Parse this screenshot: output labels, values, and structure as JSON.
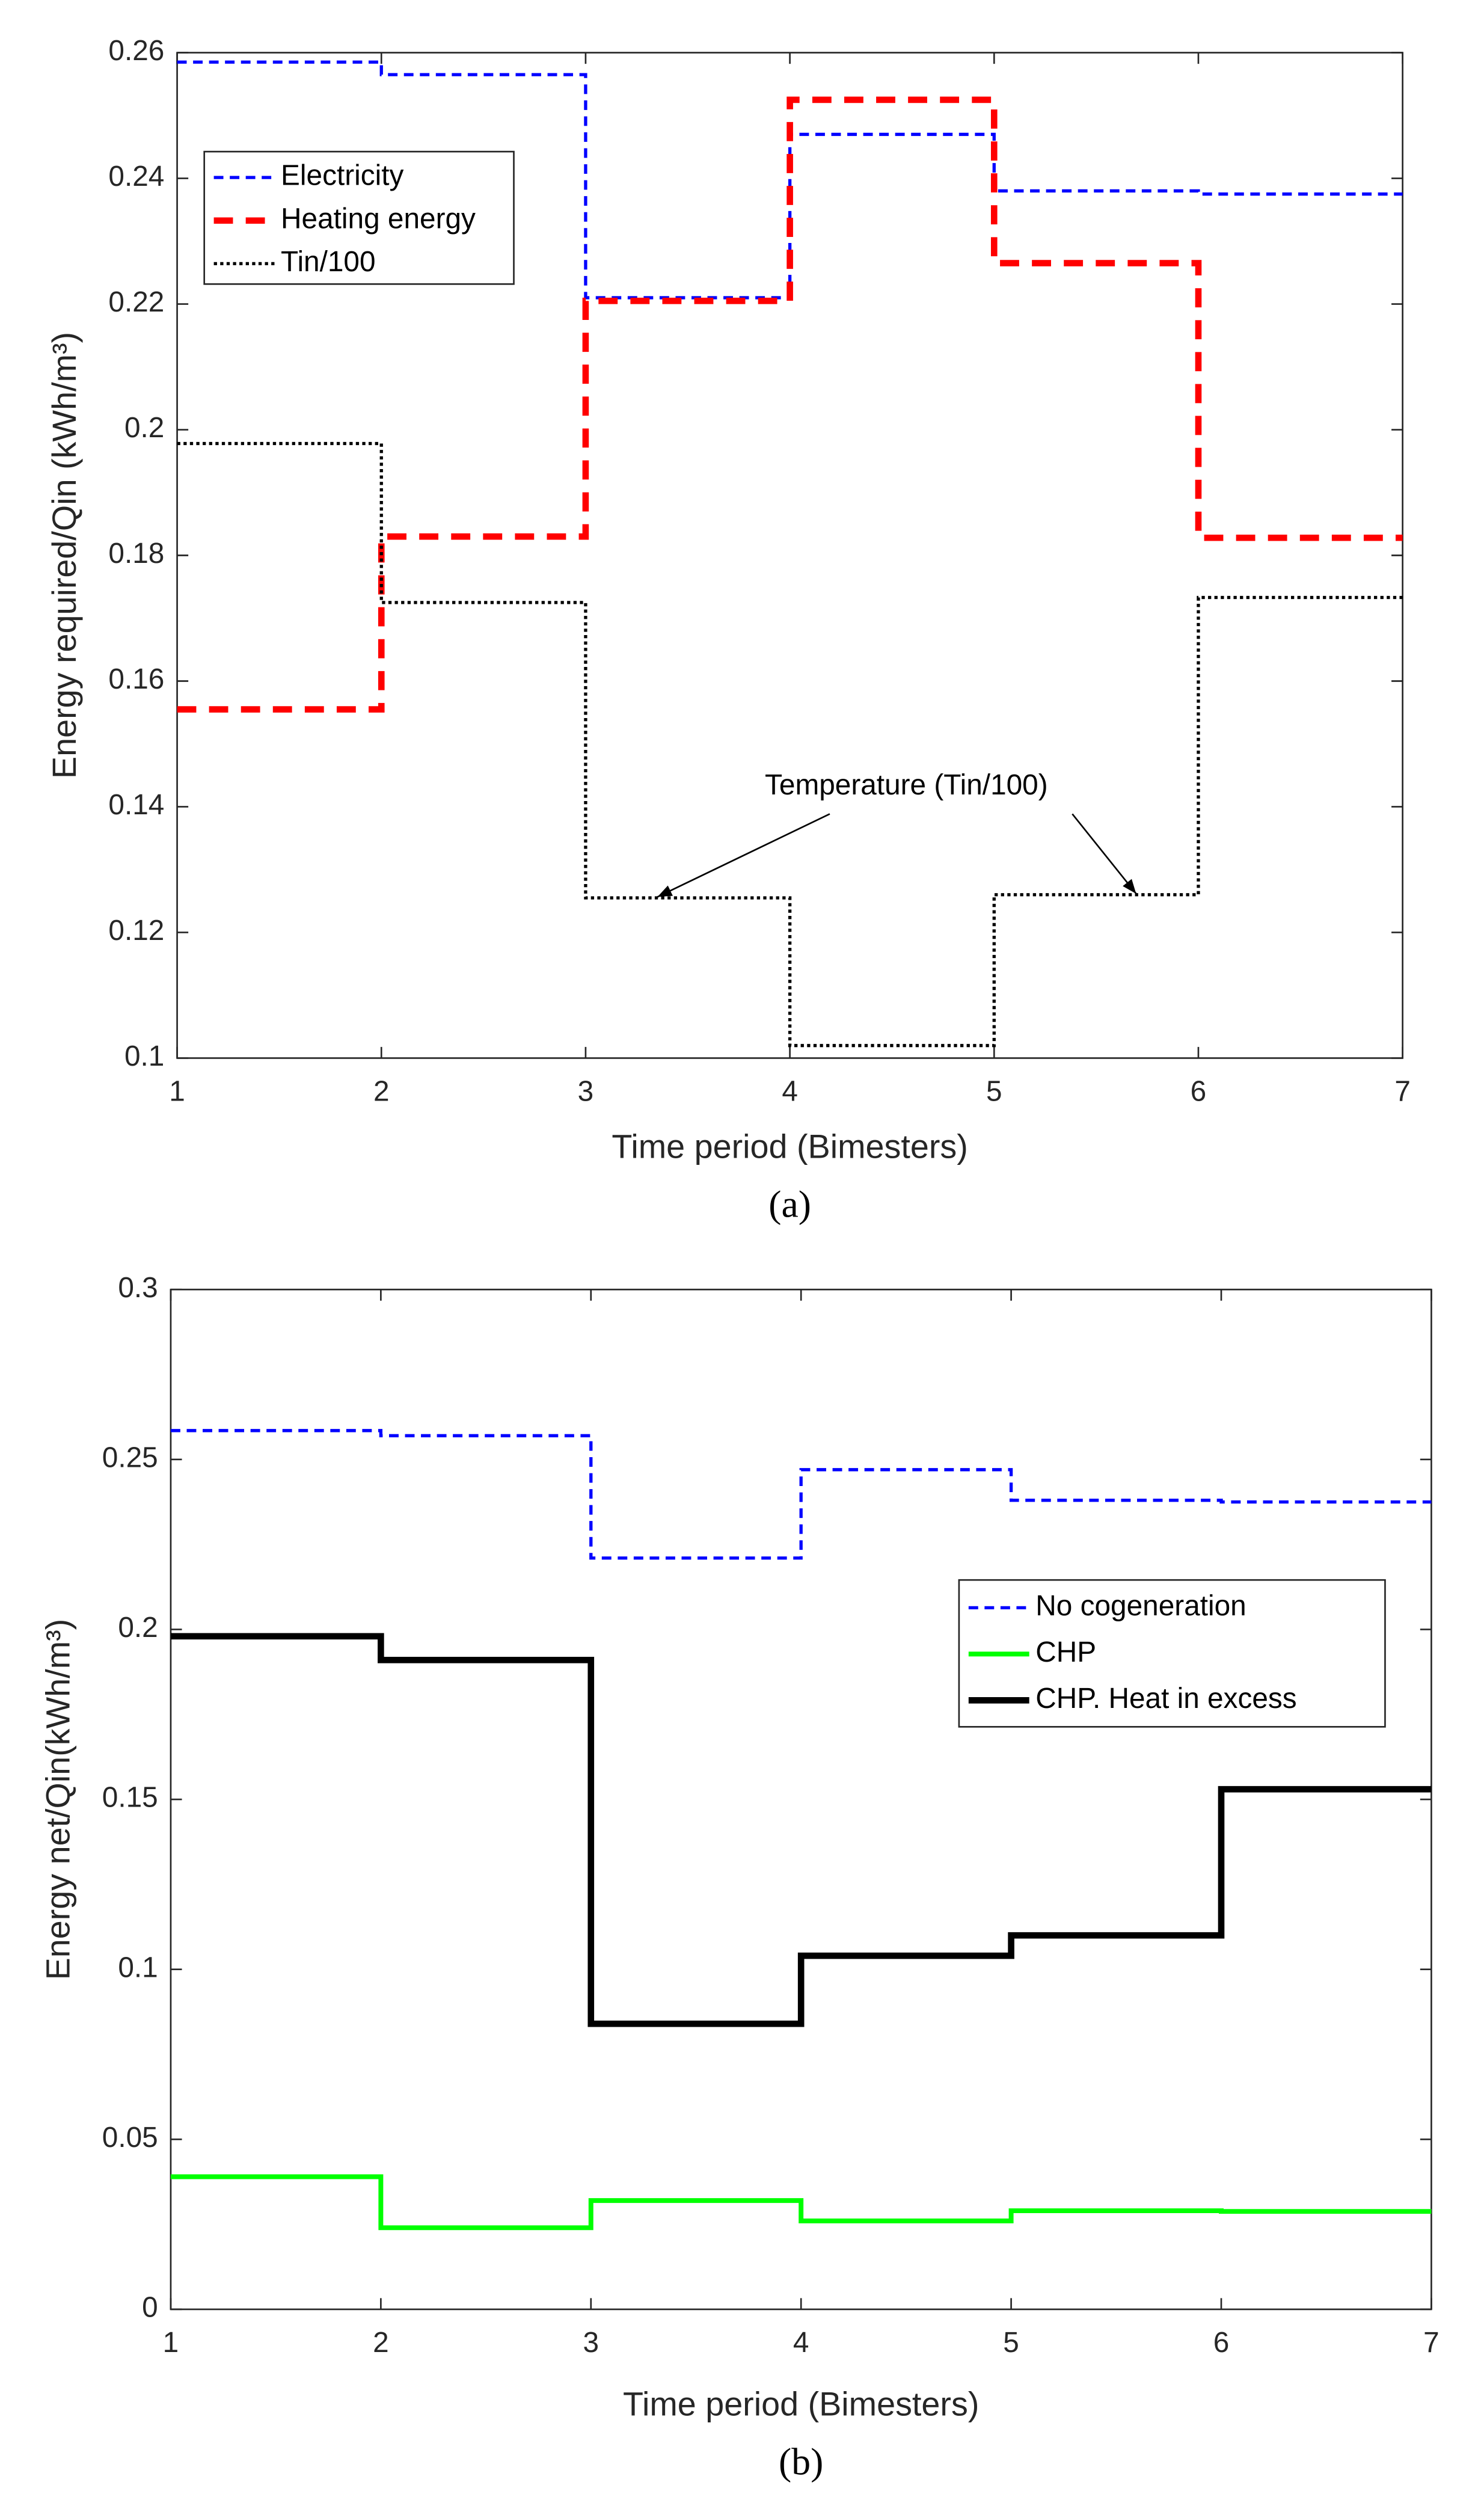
{
  "chart_data": [
    {
      "type": "line",
      "caption": "(a)",
      "xlabel": "Time period (Bimesters)",
      "ylabel": "Energy required/Qin (kWh/m³)",
      "x": [
        1,
        2,
        3,
        4,
        5,
        6,
        7
      ],
      "xlim": [
        1,
        7
      ],
      "xticks": [
        1,
        2,
        3,
        4,
        5,
        6,
        7
      ],
      "ylim": [
        0.1,
        0.26
      ],
      "yticks": [
        0.1,
        0.12,
        0.14,
        0.16,
        0.18,
        0.2,
        0.22,
        0.24,
        0.26
      ],
      "step": true,
      "legend": "upper left",
      "annotation": "Temperature (Tin/100)",
      "series": [
        {
          "name": "Electricity",
          "color": "#0000ff",
          "linestyle": "dashed",
          "values": [
            0.2585,
            0.2565,
            0.221,
            0.247,
            0.238,
            0.2375,
            0.2375
          ]
        },
        {
          "name": "Heating energy",
          "color": "#ff0000",
          "linestyle": "dashed",
          "values": [
            0.1555,
            0.183,
            0.2205,
            0.2525,
            0.2265,
            0.1828,
            0.1828
          ]
        },
        {
          "name": "Tin/100",
          "color": "#000000",
          "linestyle": "dotted",
          "values": [
            0.1978,
            0.1725,
            0.1255,
            0.102,
            0.126,
            0.1733,
            0.1733
          ]
        }
      ]
    },
    {
      "type": "line",
      "caption": "(b)",
      "xlabel": "Time period (Bimesters)",
      "ylabel": "Energy net/Qin(kWh/m³)",
      "x": [
        1,
        2,
        3,
        4,
        5,
        6,
        7
      ],
      "xlim": [
        1,
        7
      ],
      "xticks": [
        1,
        2,
        3,
        4,
        5,
        6,
        7
      ],
      "ylim": [
        0,
        0.3
      ],
      "yticks": [
        0,
        0.05,
        0.1,
        0.15,
        0.2,
        0.25,
        0.3
      ],
      "step": true,
      "legend": "center right",
      "series": [
        {
          "name": "No cogeneration",
          "color": "#0000ff",
          "linestyle": "dashed",
          "values": [
            0.2585,
            0.257,
            0.221,
            0.247,
            0.238,
            0.2375,
            0.2375
          ]
        },
        {
          "name": "CHP",
          "color": "#00ff00",
          "linestyle": "solid",
          "values": [
            0.039,
            0.024,
            0.032,
            0.026,
            0.029,
            0.0288,
            0.0288
          ]
        },
        {
          "name": "CHP. Heat in excess",
          "color": "#000000",
          "linestyle": "solid",
          "values": [
            0.198,
            0.191,
            0.084,
            0.104,
            0.11,
            0.153,
            0.153
          ]
        }
      ]
    }
  ]
}
